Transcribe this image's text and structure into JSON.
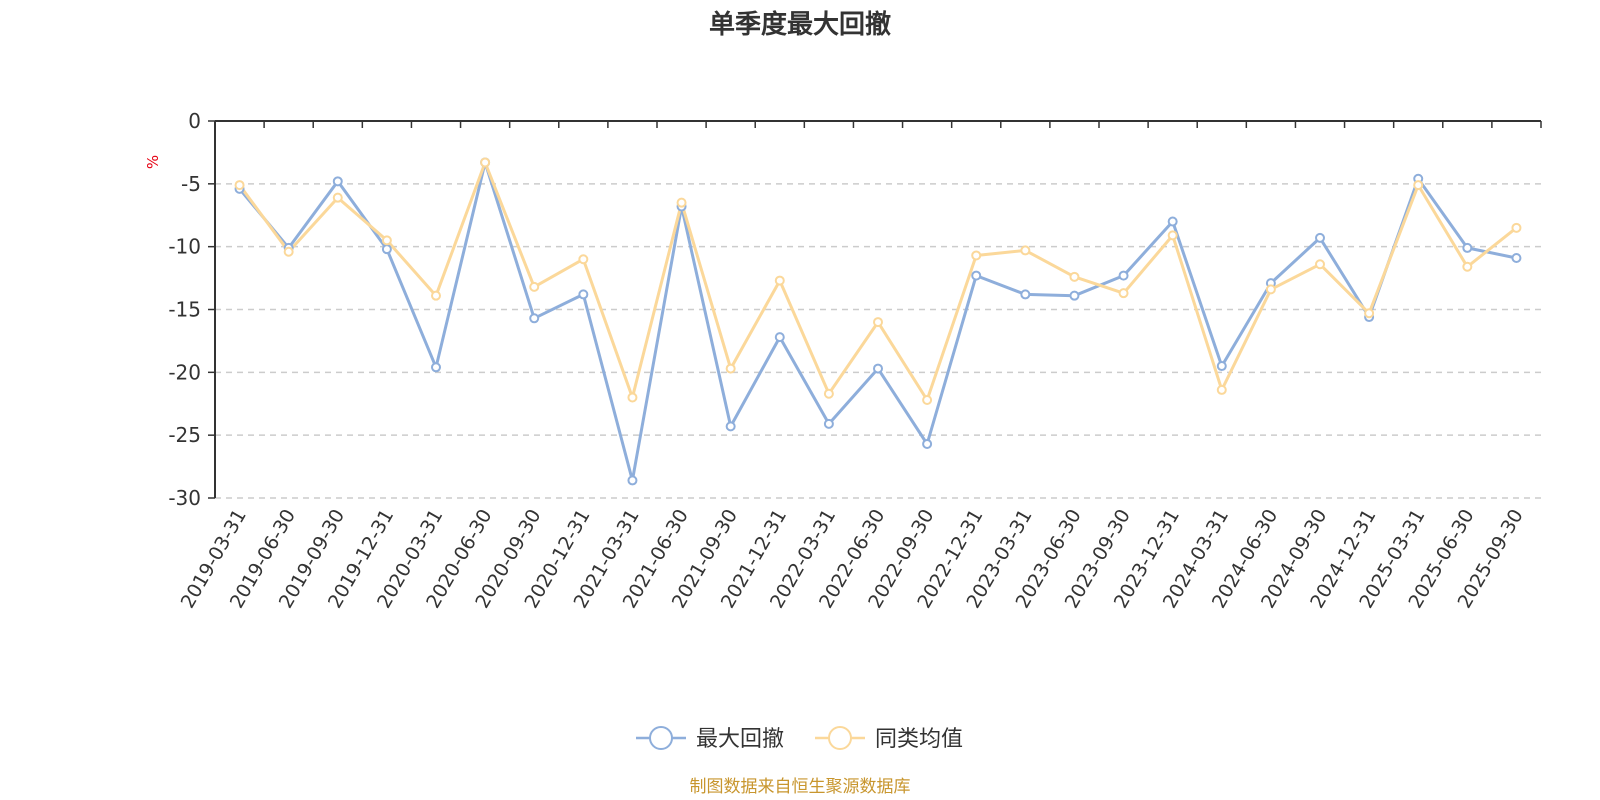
{
  "chart_data": {
    "type": "line",
    "title": "单季度最大回撤",
    "y_unit": "%",
    "ylim": [
      -30,
      0
    ],
    "y_ticks": [
      0,
      -5,
      -10,
      -15,
      -20,
      -25,
      -30
    ],
    "grid": "dashed horizontal",
    "legend_position": "bottom-center",
    "categories": [
      "2019-03-31",
      "2019-06-30",
      "2019-09-30",
      "2019-12-31",
      "2020-03-31",
      "2020-06-30",
      "2020-09-30",
      "2020-12-31",
      "2021-03-31",
      "2021-06-30",
      "2021-09-30",
      "2021-12-31",
      "2022-03-31",
      "2022-06-30",
      "2022-09-30",
      "2022-12-31",
      "2023-03-31",
      "2023-06-30",
      "2023-09-30",
      "2023-12-31",
      "2024-03-31",
      "2024-06-30",
      "2024-09-30",
      "2024-12-31",
      "2025-03-31",
      "2025-06-30",
      "2025-09-30"
    ],
    "series": [
      {
        "name": "最大回撤",
        "color": "#8eaedb",
        "values": [
          -5.4,
          -10.1,
          -4.8,
          -10.2,
          -19.6,
          -3.3,
          -15.7,
          -13.8,
          -28.6,
          -6.8,
          -24.3,
          -17.2,
          -24.1,
          -19.7,
          -25.7,
          -12.3,
          -13.8,
          -13.9,
          -12.3,
          -8.0,
          -19.5,
          -12.9,
          -9.3,
          -15.6,
          -4.6,
          -10.1,
          -10.9
        ]
      },
      {
        "name": "同类均值",
        "color": "#fbd89a",
        "values": [
          -5.1,
          -10.4,
          -6.1,
          -9.5,
          -13.9,
          -3.3,
          -13.2,
          -11.0,
          -22.0,
          -6.5,
          -19.7,
          -12.7,
          -21.7,
          -16.0,
          -22.2,
          -10.7,
          -10.3,
          -12.4,
          -13.7,
          -9.1,
          -21.4,
          -13.4,
          -11.4,
          -15.3,
          -5.1,
          -11.6,
          -8.5
        ]
      }
    ]
  },
  "footer": {
    "source": "制图数据来自恒生聚源数据库",
    "source_color": "#c8962e"
  },
  "colors": {
    "axis": "#333333",
    "grid": "#cccccc",
    "unit": "#e60012"
  }
}
